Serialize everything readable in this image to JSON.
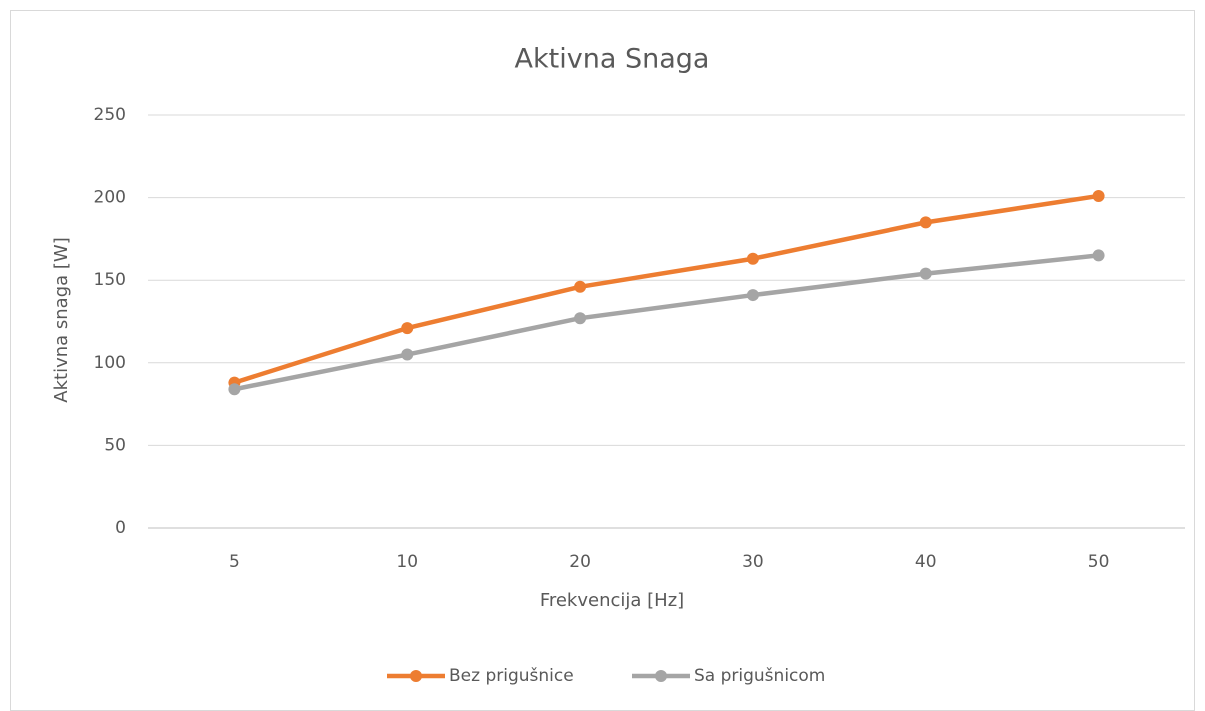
{
  "chart_data": {
    "type": "line",
    "title": "Aktivna Snaga",
    "x_label": "Frekvencija [Hz]",
    "y_label": "Aktivna snaga [W]",
    "categories": [
      "5",
      "10",
      "20",
      "30",
      "40",
      "50"
    ],
    "series": [
      {
        "name": "Bez prigušnice",
        "color": "#ed7d31",
        "values": [
          88,
          121,
          146,
          163,
          185,
          201
        ]
      },
      {
        "name": "Sa prigušnicom",
        "color": "#a5a5a5",
        "values": [
          84,
          105,
          127,
          141,
          154,
          165
        ]
      }
    ],
    "ylim": [
      0,
      250
    ],
    "yticks": [
      0,
      50,
      100,
      150,
      200,
      250
    ],
    "grid": true,
    "legend": "bottom"
  }
}
